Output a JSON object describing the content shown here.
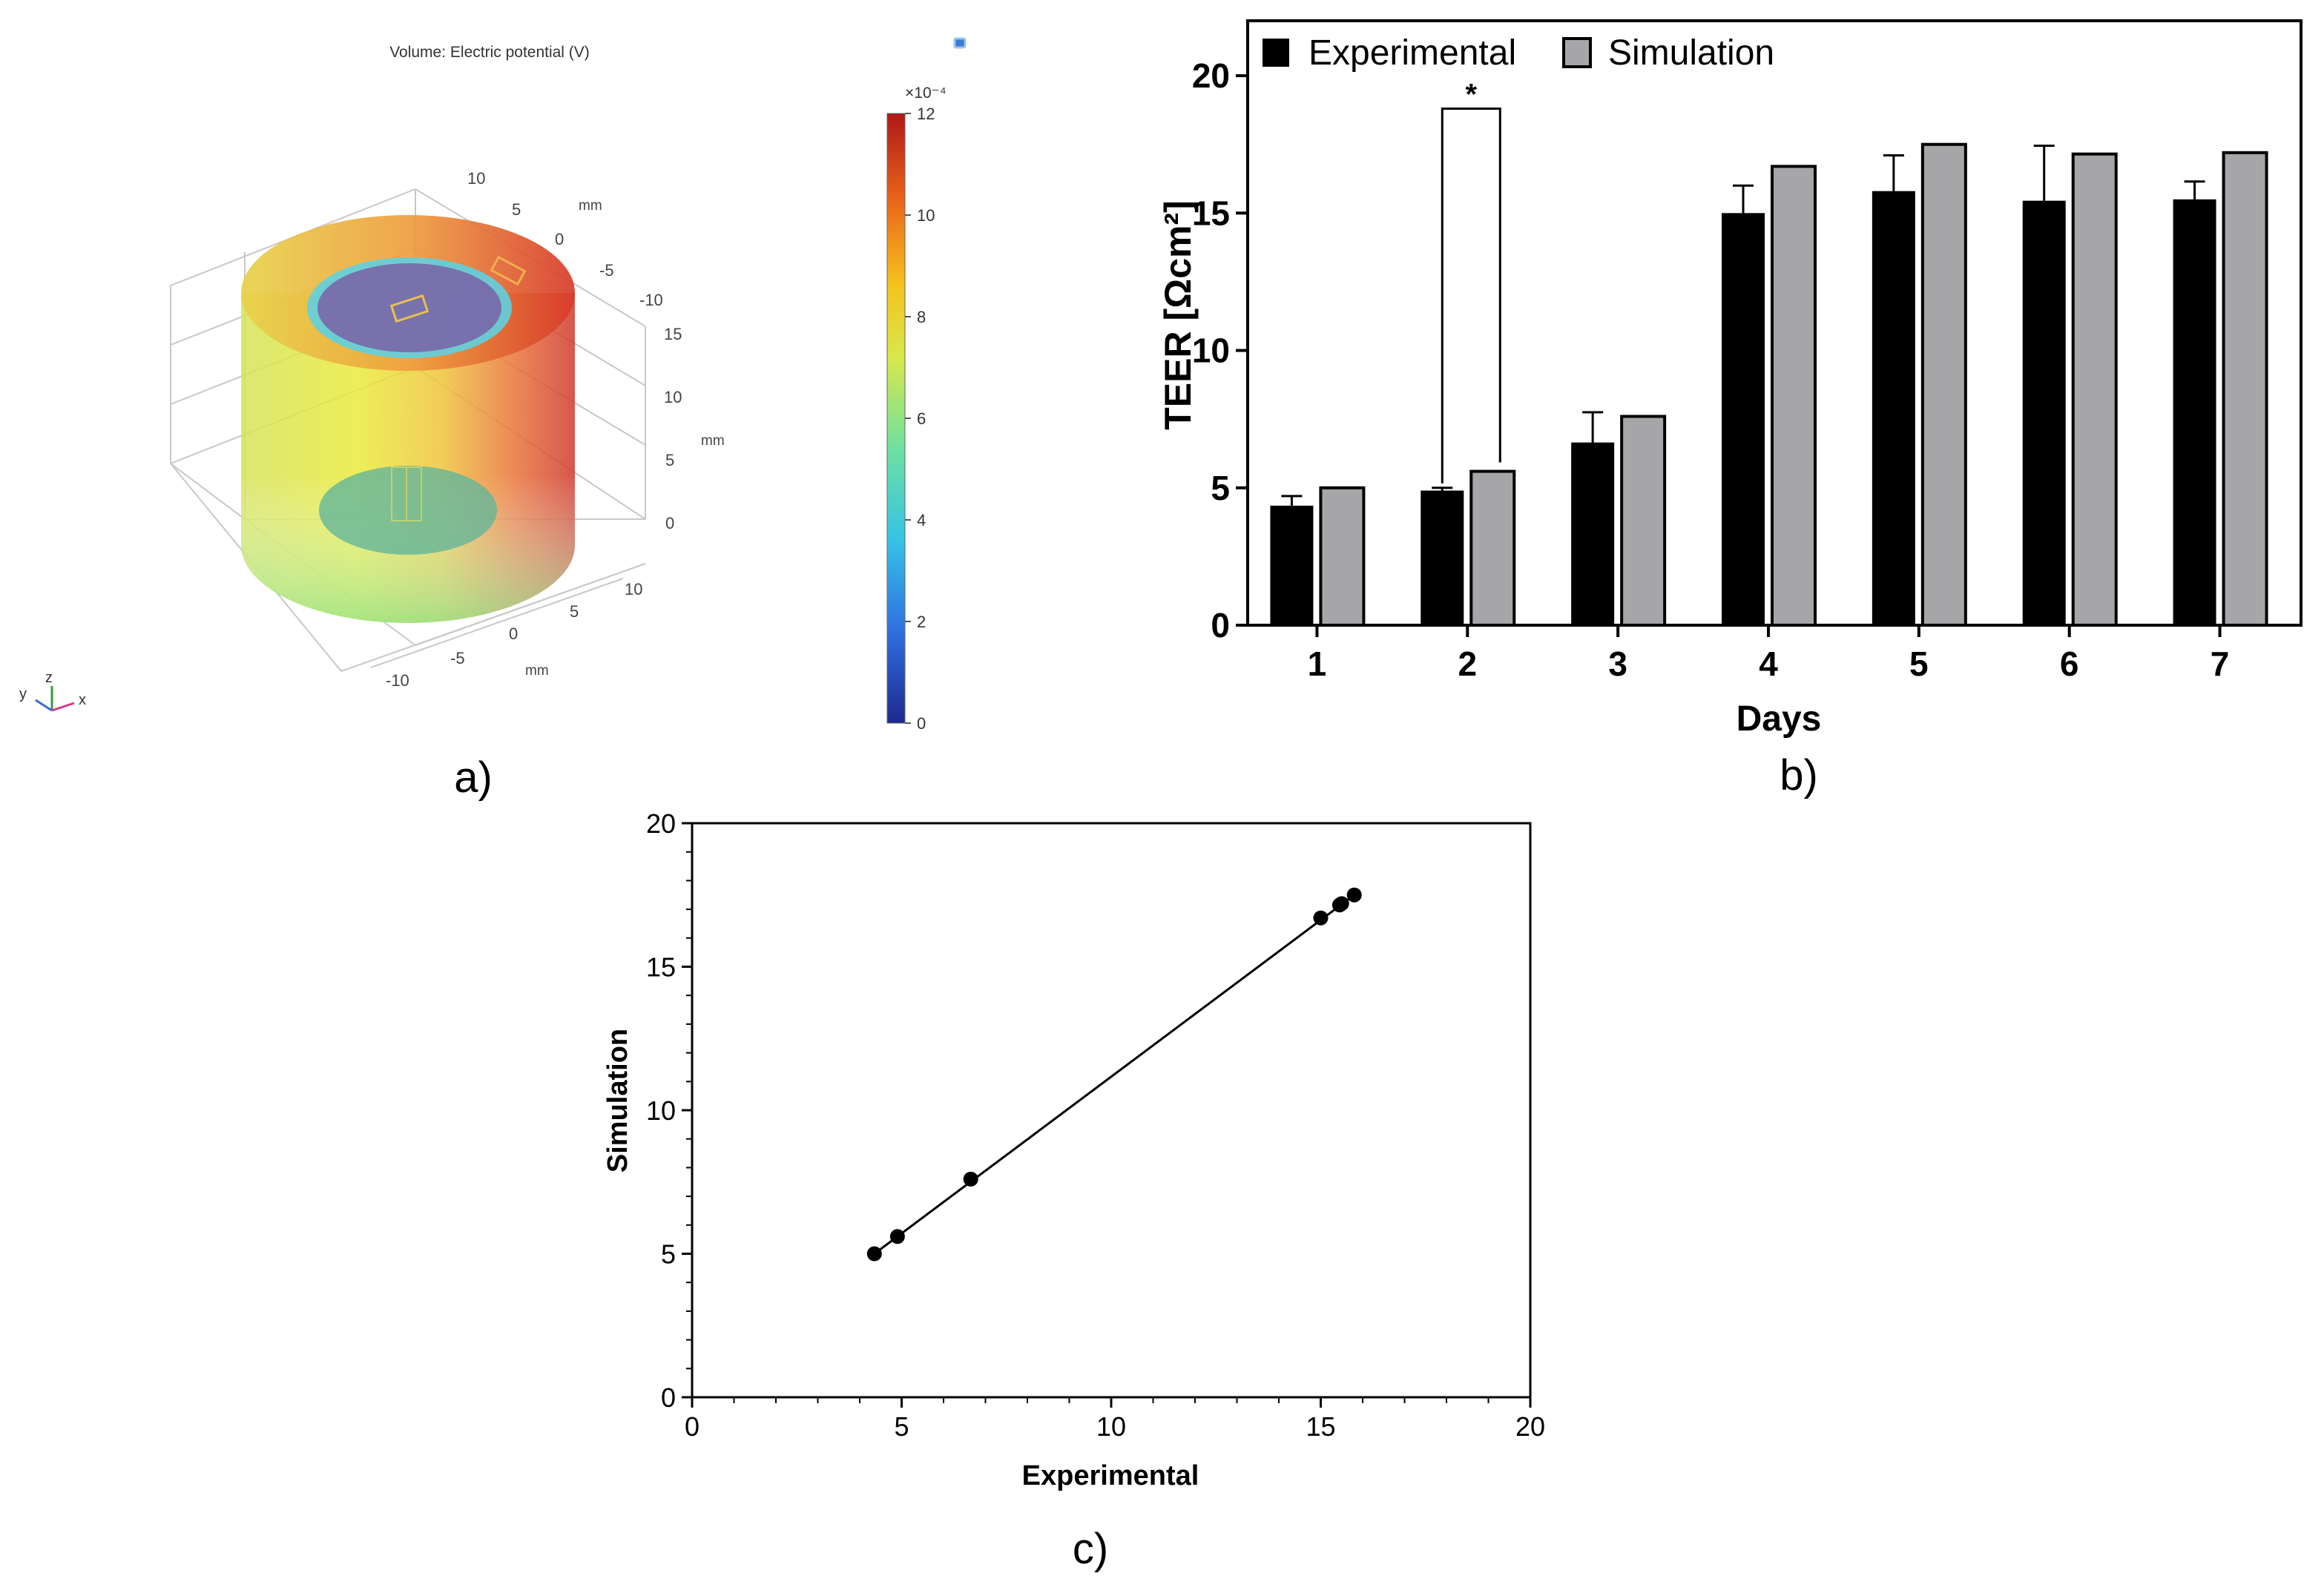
{
  "panel_a": {
    "title": "Volume: Electric potential (V)",
    "colorbar_exponent": "×10⁻⁴",
    "colorbar_ticks": [
      "0",
      "2",
      "4",
      "6",
      "8",
      "10",
      "12"
    ],
    "colorbar_range": [
      0,
      12
    ],
    "axis_unit": "mm",
    "y_axis_ticks": [
      "10",
      "5",
      "0",
      "-5",
      "-10"
    ],
    "x_axis_ticks": [
      "10",
      "5",
      "0",
      "-5",
      "-10"
    ],
    "z_axis_ticks": [
      "15",
      "10",
      "5",
      "0"
    ],
    "triad": {
      "x": "x",
      "y": "y",
      "z": "z"
    },
    "label": "a)"
  },
  "panel_b": {
    "label": "b)",
    "significance_marker": "*"
  },
  "panel_c": {
    "label": "c)"
  },
  "colors": {
    "experimental_fill": "#000000",
    "simulation_fill": "#a6a6a8",
    "axis": "#000000"
  },
  "chart_data": [
    {
      "type": "bar",
      "title": "",
      "xlabel": "Days",
      "ylabel": "TEER [Ωcm²]",
      "categories": [
        "1",
        "2",
        "3",
        "4",
        "5",
        "6",
        "7"
      ],
      "ylim": [
        0,
        22
      ],
      "yticks": [
        0,
        5,
        10,
        15,
        20
      ],
      "legend_position": "top-left",
      "series": [
        {
          "name": "Experimental",
          "values": [
            4.35,
            4.9,
            6.65,
            15.0,
            15.8,
            15.45,
            15.5
          ],
          "error": [
            0.35,
            0.1,
            1.1,
            1.0,
            1.3,
            2.0,
            0.65
          ]
        },
        {
          "name": "Simulation",
          "values": [
            5.0,
            5.6,
            7.6,
            16.7,
            17.5,
            17.15,
            17.2
          ]
        }
      ],
      "annotations": [
        {
          "category": "2",
          "text": "*",
          "bracket_top": 18.8
        }
      ]
    },
    {
      "type": "scatter",
      "title": "",
      "xlabel": "Experimental",
      "ylabel": "Simulation",
      "xlim": [
        0,
        20
      ],
      "ylim": [
        0,
        20
      ],
      "xticks": [
        0,
        5,
        10,
        15,
        20
      ],
      "yticks": [
        0,
        5,
        10,
        15,
        20
      ],
      "x": [
        4.35,
        4.9,
        6.65,
        15.0,
        15.45,
        15.5,
        15.8
      ],
      "y": [
        5.0,
        5.6,
        7.6,
        16.7,
        17.15,
        17.2,
        17.5
      ],
      "fit_line": {
        "x": [
          4.35,
          15.8
        ],
        "y": [
          5.0,
          17.5
        ]
      }
    }
  ]
}
